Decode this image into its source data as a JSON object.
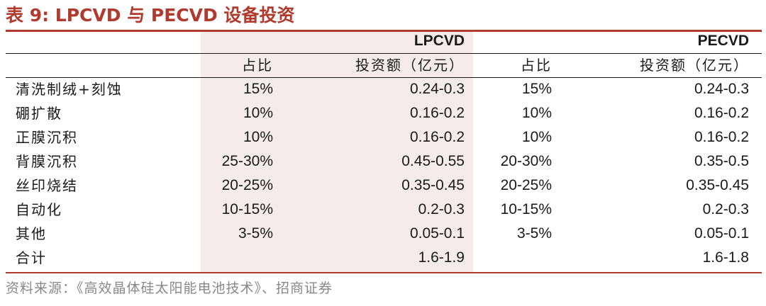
{
  "title": "表 9:  LPCVD 与 PECVD 设备投资",
  "group_headers": {
    "lpcvd": "LPCVD",
    "pecvd": "PECVD"
  },
  "sub_headers": {
    "share": "占比",
    "investment": "投资额（亿元）"
  },
  "rows": [
    {
      "item": "清洗制绒+刻蚀",
      "lp_share": "15%",
      "lp_inv": "0.24-0.3",
      "pe_share": "15%",
      "pe_inv": "0.24-0.3"
    },
    {
      "item": "硼扩散",
      "lp_share": "10%",
      "lp_inv": "0.16-0.2",
      "pe_share": "10%",
      "pe_inv": "0.16-0.2"
    },
    {
      "item": "正膜沉积",
      "lp_share": "10%",
      "lp_inv": "0.16-0.2",
      "pe_share": "10%",
      "pe_inv": "0.16-0.2"
    },
    {
      "item": "背膜沉积",
      "lp_share": "25-30%",
      "lp_inv": "0.45-0.55",
      "pe_share": "20-30%",
      "pe_inv": "0.35-0.5"
    },
    {
      "item": "丝印烧结",
      "lp_share": "20-25%",
      "lp_inv": "0.35-0.45",
      "pe_share": "20-25%",
      "pe_inv": "0.35-0.45"
    },
    {
      "item": "自动化",
      "lp_share": "10-15%",
      "lp_inv": "0.2-0.3",
      "pe_share": "10-15%",
      "pe_inv": "0.2-0.3"
    },
    {
      "item": "其他",
      "lp_share": "3-5%",
      "lp_inv": "0.05-0.1",
      "pe_share": "3-5%",
      "pe_inv": "0.05-0.1"
    },
    {
      "item": "合计",
      "lp_share": "",
      "lp_inv": "1.6-1.9",
      "pe_share": "",
      "pe_inv": "1.6-1.8"
    }
  ],
  "source": "资料来源：《高效晶体硅太阳能电池技术》、招商证券",
  "colors": {
    "accent": "#b03a2e",
    "shade": "#f4ebea"
  }
}
